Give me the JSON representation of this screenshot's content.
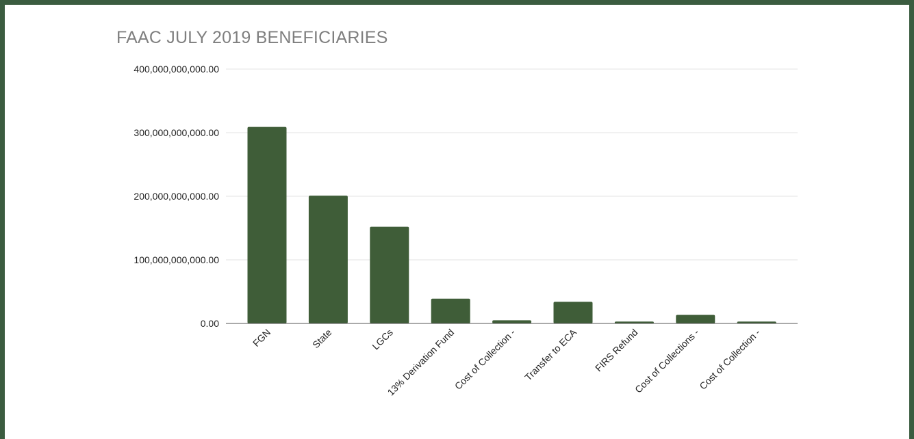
{
  "chart_data": {
    "type": "bar",
    "title": "FAAC JULY 2019 BENEFICIARIES",
    "xlabel": "",
    "ylabel": "",
    "ylim": [
      0,
      400000000000
    ],
    "yticks": [
      {
        "value": 0,
        "label": "0.00"
      },
      {
        "value": 100000000000,
        "label": "100,000,000,000.00"
      },
      {
        "value": 200000000000,
        "label": "200,000,000,000.00"
      },
      {
        "value": 300000000000,
        "label": "300,000,000,000.00"
      },
      {
        "value": 400000000000,
        "label": "400,000,000,000.00"
      }
    ],
    "grid": true,
    "bar_color": "#3f5d38",
    "categories": [
      "FGN",
      "State",
      "LGCs",
      "13% Derivation Fund",
      "Cost of Collection -",
      "Transfer to ECA",
      "FIRS Refund",
      "Cost of Collections -",
      "Cost of Collection -"
    ],
    "values": [
      309000000000,
      201000000000,
      152000000000,
      39000000000,
      5000000000,
      34000000000,
      3000000000,
      13500000000,
      3000000000
    ]
  }
}
